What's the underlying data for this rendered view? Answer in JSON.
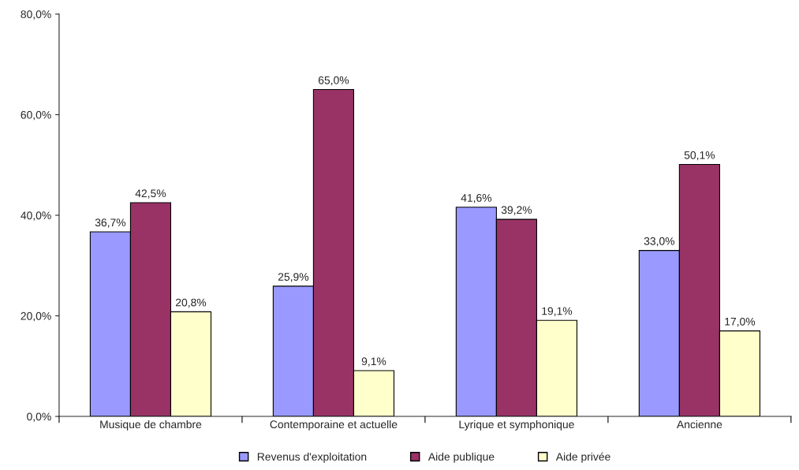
{
  "chart_data": {
    "type": "bar",
    "categories": [
      "Musique de chambre",
      "Contemporaine et actuelle",
      "Lyrique et symphonique",
      "Ancienne"
    ],
    "series": [
      {
        "name": "Revenus d'exploitation",
        "color": "#9999ff",
        "values": [
          36.7,
          25.9,
          41.6,
          33.0
        ],
        "value_labels": [
          "36,7%",
          "25,9%",
          "41,6%",
          "33,0%"
        ]
      },
      {
        "name": "Aide publique",
        "color": "#993366",
        "values": [
          42.5,
          65.0,
          39.2,
          50.1
        ],
        "value_labels": [
          "42,5%",
          "65,0%",
          "39,2%",
          "50,1%"
        ]
      },
      {
        "name": "Aide privée",
        "color": "#ffffcc",
        "values": [
          20.8,
          9.1,
          19.1,
          17.0
        ],
        "value_labels": [
          "20,8%",
          "9,1%",
          "19,1%",
          "17,0%"
        ]
      }
    ],
    "ylim": [
      0,
      80
    ],
    "yticks": [
      {
        "value": 0,
        "label": "0,0%"
      },
      {
        "value": 20,
        "label": "20,0%"
      },
      {
        "value": 40,
        "label": "40,0%"
      },
      {
        "value": 60,
        "label": "60,0%"
      },
      {
        "value": 80,
        "label": "80,0%"
      }
    ],
    "grid": false,
    "legend": "bottom"
  }
}
